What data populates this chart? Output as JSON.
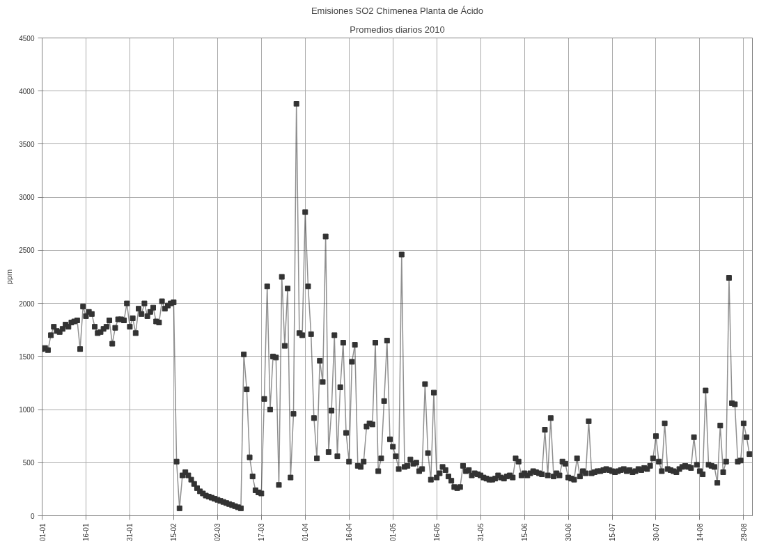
{
  "chart_data": {
    "type": "line",
    "title": "Emisiones SO2 Chimenea Planta de Ácido",
    "subtitle": "Promedios diarios 2010",
    "ylabel": "ppm",
    "marker": "square",
    "grid": true,
    "ylim": [
      0,
      4500
    ],
    "yticks": [
      0,
      500,
      1000,
      1500,
      2000,
      2500,
      3000,
      3500,
      4000,
      4500
    ],
    "xlim": [
      "2010-01-01",
      "2010-09-01"
    ],
    "xticks": [
      {
        "value": "2010-01-01",
        "label": "01-01"
      },
      {
        "value": "2010-01-16",
        "label": "16-01"
      },
      {
        "value": "2010-01-31",
        "label": "31-01"
      },
      {
        "value": "2010-02-15",
        "label": "15-02"
      },
      {
        "value": "2010-03-02",
        "label": "02-03"
      },
      {
        "value": "2010-03-17",
        "label": "17-03"
      },
      {
        "value": "2010-04-01",
        "label": "01-04"
      },
      {
        "value": "2010-04-16",
        "label": "16-04"
      },
      {
        "value": "2010-05-01",
        "label": "01-05"
      },
      {
        "value": "2010-05-16",
        "label": "16-05"
      },
      {
        "value": "2010-05-31",
        "label": "31-05"
      },
      {
        "value": "2010-06-15",
        "label": "15-06"
      },
      {
        "value": "2010-06-30",
        "label": "30-06"
      },
      {
        "value": "2010-07-15",
        "label": "15-07"
      },
      {
        "value": "2010-07-30",
        "label": "30-07"
      },
      {
        "value": "2010-08-14",
        "label": "14-08"
      },
      {
        "value": "2010-08-29",
        "label": "29-08"
      }
    ],
    "x": [
      "2010-01-01",
      "2010-01-02",
      "2010-01-03",
      "2010-01-04",
      "2010-01-05",
      "2010-01-06",
      "2010-01-07",
      "2010-01-08",
      "2010-01-09",
      "2010-01-10",
      "2010-01-11",
      "2010-01-12",
      "2010-01-13",
      "2010-01-14",
      "2010-01-15",
      "2010-01-16",
      "2010-01-17",
      "2010-01-18",
      "2010-01-19",
      "2010-01-20",
      "2010-01-21",
      "2010-01-22",
      "2010-01-23",
      "2010-01-24",
      "2010-01-25",
      "2010-01-26",
      "2010-01-27",
      "2010-01-28",
      "2010-01-29",
      "2010-01-30",
      "2010-01-31",
      "2010-02-01",
      "2010-02-02",
      "2010-02-03",
      "2010-02-04",
      "2010-02-05",
      "2010-02-06",
      "2010-02-07",
      "2010-02-08",
      "2010-02-09",
      "2010-02-10",
      "2010-02-11",
      "2010-02-12",
      "2010-02-13",
      "2010-02-14",
      "2010-02-15",
      "2010-02-16",
      "2010-02-17",
      "2010-02-18",
      "2010-02-19",
      "2010-02-20",
      "2010-02-21",
      "2010-02-22",
      "2010-02-23",
      "2010-02-24",
      "2010-02-25",
      "2010-02-26",
      "2010-02-27",
      "2010-02-28",
      "2010-03-01",
      "2010-03-02",
      "2010-03-03",
      "2010-03-04",
      "2010-03-05",
      "2010-03-06",
      "2010-03-07",
      "2010-03-08",
      "2010-03-09",
      "2010-03-10",
      "2010-03-11",
      "2010-03-12",
      "2010-03-13",
      "2010-03-14",
      "2010-03-15",
      "2010-03-16",
      "2010-03-17",
      "2010-03-18",
      "2010-03-19",
      "2010-03-20",
      "2010-03-21",
      "2010-03-22",
      "2010-03-23",
      "2010-03-24",
      "2010-03-25",
      "2010-03-26",
      "2010-03-27",
      "2010-03-28",
      "2010-03-29",
      "2010-03-30",
      "2010-03-31",
      "2010-04-01",
      "2010-04-02",
      "2010-04-03",
      "2010-04-04",
      "2010-04-05",
      "2010-04-06",
      "2010-04-07",
      "2010-04-08",
      "2010-04-09",
      "2010-04-10",
      "2010-04-11",
      "2010-04-12",
      "2010-04-13",
      "2010-04-14",
      "2010-04-15",
      "2010-04-16",
      "2010-04-17",
      "2010-04-18",
      "2010-04-19",
      "2010-04-20",
      "2010-04-21",
      "2010-04-22",
      "2010-04-23",
      "2010-04-24",
      "2010-04-25",
      "2010-04-26",
      "2010-04-27",
      "2010-04-28",
      "2010-04-29",
      "2010-04-30",
      "2010-05-01",
      "2010-05-02",
      "2010-05-03",
      "2010-05-04",
      "2010-05-05",
      "2010-05-06",
      "2010-05-07",
      "2010-05-08",
      "2010-05-09",
      "2010-05-10",
      "2010-05-11",
      "2010-05-12",
      "2010-05-13",
      "2010-05-14",
      "2010-05-15",
      "2010-05-16",
      "2010-05-17",
      "2010-05-18",
      "2010-05-19",
      "2010-05-20",
      "2010-05-21",
      "2010-05-22",
      "2010-05-23",
      "2010-05-24",
      "2010-05-25",
      "2010-05-26",
      "2010-05-27",
      "2010-05-28",
      "2010-05-29",
      "2010-05-30",
      "2010-05-31",
      "2010-06-01",
      "2010-06-02",
      "2010-06-03",
      "2010-06-04",
      "2010-06-05",
      "2010-06-06",
      "2010-06-07",
      "2010-06-08",
      "2010-06-09",
      "2010-06-10",
      "2010-06-11",
      "2010-06-12",
      "2010-06-13",
      "2010-06-14",
      "2010-06-15",
      "2010-06-16",
      "2010-06-17",
      "2010-06-18",
      "2010-06-19",
      "2010-06-20",
      "2010-06-21",
      "2010-06-22",
      "2010-06-23",
      "2010-06-24",
      "2010-06-25",
      "2010-06-26",
      "2010-06-27",
      "2010-06-28",
      "2010-06-29",
      "2010-06-30",
      "2010-07-01",
      "2010-07-02",
      "2010-07-03",
      "2010-07-04",
      "2010-07-05",
      "2010-07-06",
      "2010-07-07",
      "2010-07-08",
      "2010-07-09",
      "2010-07-10",
      "2010-07-11",
      "2010-07-12",
      "2010-07-13",
      "2010-07-14",
      "2010-07-15",
      "2010-07-16",
      "2010-07-17",
      "2010-07-18",
      "2010-07-19",
      "2010-07-20",
      "2010-07-21",
      "2010-07-22",
      "2010-07-23",
      "2010-07-24",
      "2010-07-25",
      "2010-07-26",
      "2010-07-27",
      "2010-07-28",
      "2010-07-29",
      "2010-07-30",
      "2010-07-31",
      "2010-08-01",
      "2010-08-02",
      "2010-08-03",
      "2010-08-04",
      "2010-08-05",
      "2010-08-06",
      "2010-08-07",
      "2010-08-08",
      "2010-08-09",
      "2010-08-10",
      "2010-08-11",
      "2010-08-12",
      "2010-08-13",
      "2010-08-14",
      "2010-08-15",
      "2010-08-16",
      "2010-08-17",
      "2010-08-18",
      "2010-08-19",
      "2010-08-20",
      "2010-08-21",
      "2010-08-22",
      "2010-08-23",
      "2010-08-24",
      "2010-08-25",
      "2010-08-26",
      "2010-08-27",
      "2010-08-28",
      "2010-08-29",
      "2010-08-30",
      "2010-08-31"
    ],
    "series": [
      {
        "color": "#333333",
        "values": [
          1570,
          1580,
          1560,
          1700,
          1780,
          1740,
          1730,
          1760,
          1800,
          1780,
          1820,
          1830,
          1840,
          1570,
          1970,
          1880,
          1920,
          1900,
          1780,
          1720,
          1730,
          1760,
          1780,
          1840,
          1620,
          1770,
          1850,
          1850,
          1840,
          2000,
          1780,
          1860,
          1720,
          1950,
          1900,
          2000,
          1880,
          1920,
          1960,
          1830,
          1820,
          2020,
          1950,
          1980,
          2000,
          2010,
          510,
          70,
          380,
          410,
          380,
          340,
          300,
          260,
          230,
          210,
          190,
          180,
          170,
          160,
          150,
          140,
          130,
          120,
          110,
          100,
          90,
          80,
          70,
          1520,
          1190,
          550,
          370,
          240,
          220,
          210,
          1100,
          2160,
          1000,
          1500,
          1490,
          290,
          2250,
          1600,
          2140,
          360,
          960,
          3880,
          1720,
          1700,
          2860,
          2160,
          1710,
          920,
          540,
          1460,
          1260,
          2630,
          600,
          990,
          1700,
          560,
          1210,
          1630,
          780,
          510,
          1450,
          1610,
          470,
          460,
          510,
          840,
          870,
          860,
          1630,
          420,
          540,
          1080,
          1650,
          720,
          650,
          560,
          440,
          2460,
          460,
          470,
          530,
          490,
          500,
          420,
          440,
          1240,
          590,
          340,
          1160,
          360,
          400,
          460,
          430,
          370,
          330,
          270,
          260,
          270,
          470,
          420,
          430,
          380,
          400,
          390,
          380,
          360,
          350,
          340,
          340,
          350,
          380,
          360,
          350,
          370,
          380,
          360,
          540,
          510,
          380,
          400,
          380,
          400,
          420,
          410,
          400,
          390,
          810,
          380,
          920,
          370,
          400,
          380,
          510,
          490,
          360,
          350,
          340,
          540,
          370,
          420,
          400,
          890,
          400,
          410,
          420,
          420,
          430,
          440,
          430,
          420,
          410,
          420,
          430,
          440,
          420,
          430,
          410,
          420,
          440,
          430,
          450,
          440,
          470,
          540,
          750,
          510,
          420,
          870,
          440,
          430,
          420,
          410,
          440,
          460,
          470,
          460,
          450,
          740,
          480,
          420,
          390,
          1180,
          480,
          470,
          460,
          310,
          850,
          410,
          510,
          2240,
          1060,
          1050,
          510,
          520,
          870,
          740,
          580
        ]
      }
    ]
  }
}
